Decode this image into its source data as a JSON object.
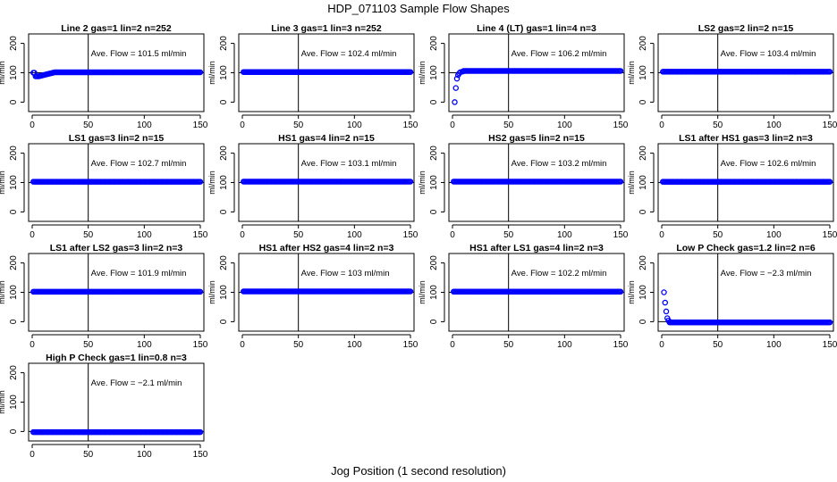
{
  "figure": {
    "title": "HDP_071103  Sample Flow Shapes",
    "xlabel": "Jog Position (1 second resolution)"
  },
  "colors": {
    "points": "#0000ff",
    "axes": "#000000",
    "background": "#ffffff"
  },
  "chart_data": [
    {
      "type": "scatter",
      "title": "Line 2 gas=1 lin=2 n=252",
      "annotation": "Ave. Flow =  101.5  ml/min",
      "ylabel": "ml/min",
      "xlim": [
        0,
        150
      ],
      "ylim": [
        -20,
        220
      ],
      "xticks": [
        0,
        50,
        100,
        150
      ],
      "yticks": [
        0,
        100,
        200
      ],
      "hline": 100,
      "vline": 50,
      "shape": "dip",
      "x_range": [
        1,
        150
      ],
      "steady_value": 101.5,
      "start_value": 100,
      "dip_value": 88
    },
    {
      "type": "scatter",
      "title": "Line 3 gas=1 lin=3 n=252",
      "annotation": "Ave. Flow =  102.4  ml/min",
      "ylabel": "ml/min",
      "xlim": [
        0,
        150
      ],
      "ylim": [
        -20,
        220
      ],
      "xticks": [
        0,
        50,
        100,
        150
      ],
      "yticks": [
        0,
        100,
        200
      ],
      "hline": 100,
      "vline": 50,
      "shape": "flat",
      "x_range": [
        1,
        150
      ],
      "steady_value": 102.4
    },
    {
      "type": "scatter",
      "title": "Line 4 (LT) gas=1 lin=4 n=3",
      "annotation": "Ave. Flow =  106.2  ml/min",
      "ylabel": "ml/min",
      "xlim": [
        0,
        150
      ],
      "ylim": [
        -20,
        220
      ],
      "xticks": [
        0,
        50,
        100,
        150
      ],
      "yticks": [
        0,
        100,
        200
      ],
      "hline": 100,
      "vline": 50,
      "shape": "rise",
      "x_range": [
        1,
        150
      ],
      "steady_value": 106.2,
      "initial_points": [
        [
          2,
          0
        ],
        [
          3,
          48
        ],
        [
          4,
          80
        ],
        [
          5,
          92
        ],
        [
          6,
          98
        ],
        [
          7,
          102
        ],
        [
          9,
          104
        ]
      ]
    },
    {
      "type": "scatter",
      "title": "LS2 gas=2 lin=2 n=15",
      "annotation": "Ave. Flow =  103.4  ml/min",
      "ylabel": "ml/min",
      "xlim": [
        0,
        150
      ],
      "ylim": [
        -20,
        220
      ],
      "xticks": [
        0,
        50,
        100,
        150
      ],
      "yticks": [
        0,
        100,
        200
      ],
      "hline": 100,
      "vline": 50,
      "shape": "flat",
      "x_range": [
        1,
        150
      ],
      "steady_value": 103.4
    },
    {
      "type": "scatter",
      "title": "LS1 gas=3 lin=2 n=15",
      "annotation": "Ave. Flow =  102.7  ml/min",
      "ylabel": "ml/min",
      "xlim": [
        0,
        150
      ],
      "ylim": [
        -20,
        220
      ],
      "xticks": [
        0,
        50,
        100,
        150
      ],
      "yticks": [
        0,
        100,
        200
      ],
      "hline": 100,
      "vline": 50,
      "shape": "flat",
      "x_range": [
        1,
        150
      ],
      "steady_value": 102.7
    },
    {
      "type": "scatter",
      "title": "HS1 gas=4 lin=2 n=15",
      "annotation": "Ave. Flow =  103.1  ml/min",
      "ylabel": "ml/min",
      "xlim": [
        0,
        150
      ],
      "ylim": [
        -20,
        220
      ],
      "xticks": [
        0,
        50,
        100,
        150
      ],
      "yticks": [
        0,
        100,
        200
      ],
      "hline": 100,
      "vline": 50,
      "shape": "flat",
      "x_range": [
        1,
        150
      ],
      "steady_value": 103.1
    },
    {
      "type": "scatter",
      "title": "HS2 gas=5 lin=2 n=15",
      "annotation": "Ave. Flow =  103.2  ml/min",
      "ylabel": "ml/min",
      "xlim": [
        0,
        150
      ],
      "ylim": [
        -20,
        220
      ],
      "xticks": [
        0,
        50,
        100,
        150
      ],
      "yticks": [
        0,
        100,
        200
      ],
      "hline": 100,
      "vline": 50,
      "shape": "flat",
      "x_range": [
        1,
        150
      ],
      "steady_value": 103.2
    },
    {
      "type": "scatter",
      "title": "LS1 after HS1 gas=3 lin=2 n=3",
      "annotation": "Ave. Flow =  102.6  ml/min",
      "ylabel": "ml/min",
      "xlim": [
        0,
        150
      ],
      "ylim": [
        -20,
        220
      ],
      "xticks": [
        0,
        50,
        100,
        150
      ],
      "yticks": [
        0,
        100,
        200
      ],
      "hline": 100,
      "vline": 50,
      "shape": "flat",
      "x_range": [
        1,
        150
      ],
      "steady_value": 102.6
    },
    {
      "type": "scatter",
      "title": "LS1 after LS2 gas=3 lin=2 n=3",
      "annotation": "Ave. Flow =  101.9  ml/min",
      "ylabel": "ml/min",
      "xlim": [
        0,
        150
      ],
      "ylim": [
        -20,
        220
      ],
      "xticks": [
        0,
        50,
        100,
        150
      ],
      "yticks": [
        0,
        100,
        200
      ],
      "hline": 100,
      "vline": 50,
      "shape": "flat",
      "x_range": [
        1,
        150
      ],
      "steady_value": 101.9
    },
    {
      "type": "scatter",
      "title": "HS1 after HS2 gas=4 lin=2 n=3",
      "annotation": "Ave. Flow =  103  ml/min",
      "ylabel": "ml/min",
      "xlim": [
        0,
        150
      ],
      "ylim": [
        -20,
        220
      ],
      "xticks": [
        0,
        50,
        100,
        150
      ],
      "yticks": [
        0,
        100,
        200
      ],
      "hline": 100,
      "vline": 50,
      "shape": "flat",
      "x_range": [
        1,
        150
      ],
      "steady_value": 103
    },
    {
      "type": "scatter",
      "title": "HS1 after LS1 gas=4 lin=2 n=3",
      "annotation": "Ave. Flow =  102.2  ml/min",
      "ylabel": "ml/min",
      "xlim": [
        0,
        150
      ],
      "ylim": [
        -20,
        220
      ],
      "xticks": [
        0,
        50,
        100,
        150
      ],
      "yticks": [
        0,
        100,
        200
      ],
      "hline": 100,
      "vline": 50,
      "shape": "flat",
      "x_range": [
        1,
        150
      ],
      "steady_value": 102.2
    },
    {
      "type": "scatter",
      "title": "Low P Check gas=1.2 lin=2 n=6",
      "annotation": "Ave. Flow =  −2.3  ml/min",
      "ylabel": "ml/min",
      "xlim": [
        0,
        150
      ],
      "ylim": [
        -20,
        220
      ],
      "xticks": [
        0,
        50,
        100,
        150
      ],
      "yticks": [
        0,
        100,
        200
      ],
      "hline": 0,
      "vline": 50,
      "shape": "decay",
      "x_range": [
        1,
        150
      ],
      "steady_value": -2.3,
      "initial_points": [
        [
          2,
          100
        ],
        [
          3,
          65
        ],
        [
          4,
          35
        ],
        [
          5,
          12
        ],
        [
          6,
          4
        ]
      ]
    },
    {
      "type": "scatter",
      "title": "High P Check gas=1 lin=0.8 n=3",
      "annotation": "Ave. Flow =  −2.1  ml/min",
      "ylabel": "ml/min",
      "xlim": [
        0,
        150
      ],
      "ylim": [
        -20,
        220
      ],
      "xticks": [
        0,
        50,
        100,
        150
      ],
      "yticks": [
        0,
        100,
        200
      ],
      "hline": 0,
      "vline": 50,
      "shape": "flat",
      "x_range": [
        1,
        150
      ],
      "steady_value": -2.1
    }
  ]
}
